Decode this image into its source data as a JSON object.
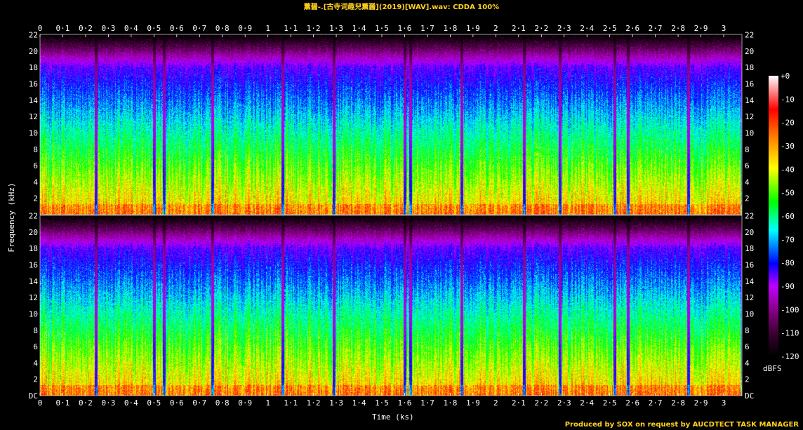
{
  "title": "薰醤-.[古寺词趣兒薰醤](2019)[WAV].wav: CDDA 100%",
  "credit": "Produced by SOX on request by AUCDTECT TASK MANAGER",
  "colors": {
    "accent": "#ffd21e",
    "background": "#000000",
    "palette": [
      "#000000",
      "#3a0030",
      "#8b008b",
      "#c000ff",
      "#0000ff",
      "#00ffff",
      "#00ff00",
      "#ffff00",
      "#ff8000",
      "#ff0000",
      "#ffffff"
    ]
  },
  "chart_data": {
    "type": "heatmap",
    "title": "薰醤-.[古寺词趣兒薰醤](2019)[WAV].wav: CDDA 100%",
    "xlabel": "Time (ks)",
    "ylabel": "Frequency (kHz)",
    "colorbar_label": "dBFS",
    "channels": 2,
    "x_ticks": [
      "0",
      "0·1",
      "0·2",
      "0·3",
      "0·4",
      "0·5",
      "0·6",
      "0·7",
      "0·8",
      "0·9",
      "1",
      "1·1",
      "1·2",
      "1·3",
      "1·4",
      "1·5",
      "1·6",
      "1·7",
      "1·8",
      "1·9",
      "2",
      "2·1",
      "2·2",
      "2·3",
      "2·4",
      "2·5",
      "2·6",
      "2·7",
      "2·8",
      "2·9",
      "3"
    ],
    "y_ticks": [
      "DC",
      "2",
      "4",
      "6",
      "8",
      "10",
      "12",
      "14",
      "16",
      "18",
      "20",
      "22"
    ],
    "colorbar_ticks": [
      "+0",
      "-10",
      "-20",
      "-30",
      "-40",
      "-50",
      "-60",
      "-70",
      "-80",
      "-90",
      "-100",
      "-110",
      "-120"
    ],
    "xlim": [
      0,
      3.08
    ],
    "ylim": [
      0,
      22.05
    ],
    "zlim": [
      -120,
      0
    ],
    "track_boundaries_ks": [
      0.245,
      0.5,
      0.545,
      0.755,
      1.065,
      1.29,
      1.6,
      1.625,
      1.85,
      2.125,
      2.28,
      2.52,
      2.58,
      2.845,
      3.08
    ]
  }
}
